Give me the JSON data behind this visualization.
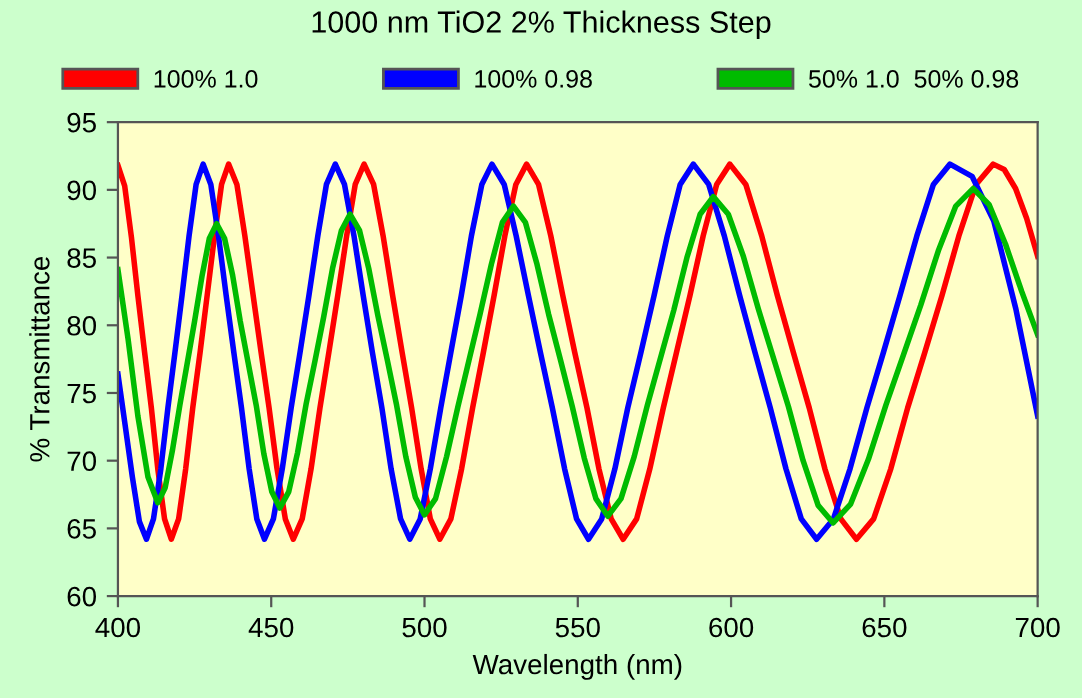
{
  "chart_data": {
    "type": "line",
    "title": "1000 nm TiO2 2% Thickness Step",
    "xlabel": "Wavelength (nm)",
    "ylabel": "% Transmittance",
    "xlim": [
      400,
      700
    ],
    "xticks": [
      400,
      450,
      500,
      550,
      600,
      650,
      700
    ],
    "ylim": [
      60,
      95
    ],
    "yticks": [
      60,
      65,
      70,
      75,
      80,
      85,
      90,
      95
    ],
    "grid": false,
    "legend": "top",
    "marker": "none",
    "line_style": "solid",
    "series": [
      {
        "name": "100% 1.0",
        "color": "#ff0000",
        "x": [
          400,
          402.2,
          404.4,
          406.5,
          408.7,
          410.9,
          413.0,
          415.2,
          417.4,
          419.8,
          422.1,
          424.4,
          426.8,
          429.1,
          431.5,
          433.8,
          436.1,
          438.8,
          441.4,
          444.1,
          446.7,
          449.3,
          451.9,
          454.6,
          457.2,
          460.1,
          463.0,
          465.9,
          468.8,
          471.7,
          474.6,
          477.4,
          480.3,
          483.4,
          486.5,
          489.6,
          492.7,
          495.8,
          498.9,
          501.9,
          505.0,
          508.6,
          512.1,
          515.7,
          519.2,
          522.7,
          526.2,
          529.8,
          533.3,
          537.2,
          541.2,
          545.1,
          549.0,
          553.0,
          556.9,
          560.9,
          564.8,
          569.2,
          573.5,
          577.9,
          582.2,
          586.6,
          590.9,
          595.3,
          599.6,
          604.8,
          610.0,
          615.1,
          620.3,
          625.5,
          630.6,
          635.8,
          640.9,
          646.5,
          652.1,
          657.6,
          663.2,
          668.8,
          674.3,
          679.9,
          685.5,
          689.1,
          692.8,
          696.4,
          700
        ],
        "values": [
          91.8,
          90.3,
          86.5,
          82.2,
          78,
          73.9,
          69.4,
          65.7,
          64.2,
          65.7,
          69.4,
          73.9,
          78,
          82.2,
          86.6,
          90.4,
          91.9,
          90.4,
          86.6,
          82.2,
          78,
          73.9,
          69.4,
          65.7,
          64.2,
          65.7,
          69.4,
          73.9,
          78,
          82.2,
          86.6,
          90.4,
          91.9,
          90.4,
          86.6,
          82.2,
          78,
          73.9,
          69.4,
          65.7,
          64.2,
          65.7,
          69.4,
          73.9,
          78,
          82.2,
          86.6,
          90.4,
          91.9,
          90.4,
          86.6,
          82.2,
          78,
          73.9,
          69.4,
          65.7,
          64.2,
          65.7,
          69.4,
          73.9,
          78,
          82.2,
          86.6,
          90.4,
          91.9,
          90.4,
          86.6,
          82.2,
          78,
          73.9,
          69.4,
          65.7,
          64.2,
          65.7,
          69.4,
          73.9,
          78,
          82.2,
          86.6,
          90.4,
          91.9,
          91.5,
          90.1,
          87.9,
          85.1
        ]
      },
      {
        "name": "100% 0.98",
        "color": "#0000ff",
        "x": [
          400,
          402.3,
          404.7,
          407.0,
          409.3,
          411.6,
          414.0,
          416.3,
          418.6,
          420.9,
          423.2,
          425.5,
          427.8,
          430.3,
          432.8,
          435.3,
          437.8,
          440.3,
          442.8,
          445.3,
          447.8,
          450.7,
          453.6,
          456.5,
          459.4,
          462.3,
          465.2,
          468.0,
          470.9,
          473.9,
          477.0,
          480.0,
          483.0,
          486.1,
          489.1,
          492.2,
          495.2,
          498.6,
          501.9,
          505.3,
          508.6,
          512.0,
          515.3,
          518.7,
          522.0,
          526.0,
          529.9,
          533.9,
          537.8,
          541.7,
          545.7,
          549.6,
          553.5,
          557.8,
          562.1,
          566.3,
          570.6,
          574.9,
          579.2,
          583.4,
          587.7,
          592.7,
          597.8,
          602.8,
          607.8,
          612.8,
          617.9,
          622.9,
          627.9,
          633.4,
          638.8,
          644.3,
          649.7,
          655.1,
          660.6,
          666.0,
          671.4,
          678.6,
          685.7,
          692.9,
          700
        ],
        "values": [
          76.4,
          72.7,
          68.8,
          65.5,
          64.2,
          65.7,
          69.4,
          73.9,
          78,
          82.2,
          86.6,
          90.4,
          91.9,
          90.4,
          86.6,
          82.2,
          78,
          73.9,
          69.4,
          65.7,
          64.2,
          65.7,
          69.4,
          73.9,
          78,
          82.2,
          86.6,
          90.4,
          91.9,
          90.4,
          86.6,
          82.2,
          78,
          73.9,
          69.4,
          65.7,
          64.2,
          65.7,
          69.4,
          73.9,
          78,
          82.2,
          86.6,
          90.4,
          91.9,
          90.4,
          86.6,
          82.2,
          78,
          73.9,
          69.4,
          65.7,
          64.2,
          65.7,
          69.4,
          73.9,
          78,
          82.2,
          86.6,
          90.4,
          91.9,
          90.4,
          86.6,
          82.2,
          78,
          73.9,
          69.4,
          65.7,
          64.2,
          65.7,
          69.4,
          73.9,
          78,
          82.2,
          86.6,
          90.4,
          91.9,
          91.0,
          87.7,
          81.2,
          73.3
        ]
      },
      {
        "name": "50% 1.0  50% 0.98",
        "color": "#00bb00",
        "x": [
          400,
          403.3,
          406.5,
          409.8,
          413.0,
          415.4,
          417.8,
          420.2,
          422.6,
          425.0,
          427.4,
          429.8,
          432.2,
          434.8,
          437.4,
          439.9,
          442.5,
          445.1,
          447.6,
          450.2,
          452.8,
          455.7,
          458.6,
          461.4,
          464.3,
          467.1,
          470.0,
          472.9,
          475.7,
          478.8,
          481.8,
          484.8,
          487.9,
          490.9,
          493.9,
          497.0,
          500.0,
          503.6,
          507.2,
          510.9,
          514.5,
          518.1,
          521.8,
          525.4,
          529.0,
          532.9,
          536.7,
          540.5,
          544.4,
          548.2,
          552.1,
          555.9,
          559.8,
          564.1,
          568.4,
          572.7,
          577.0,
          581.3,
          585.6,
          589.9,
          594.2,
          599.1,
          604.0,
          608.9,
          613.8,
          618.7,
          623.5,
          628.4,
          633.3,
          639.0,
          644.8,
          650.5,
          656.2,
          661.9,
          667.6,
          673.3,
          679.0,
          684.2,
          689.5,
          694.8,
          700.0
        ],
        "values": [
          84.1,
          79.0,
          73.3,
          68.8,
          66.9,
          68.0,
          70.8,
          74.1,
          77.2,
          80.3,
          83.6,
          86.4,
          87.5,
          86.4,
          83.7,
          80.3,
          77.2,
          74.1,
          70.5,
          67.7,
          66.5,
          67.7,
          70.6,
          74.2,
          77.4,
          80.6,
          84.2,
          87.0,
          88.2,
          87.0,
          84.2,
          80.7,
          77.4,
          74.1,
          70.3,
          67.3,
          66.0,
          67.2,
          70.3,
          74.0,
          77.4,
          80.8,
          84.5,
          87.6,
          88.8,
          87.6,
          84.5,
          80.8,
          77.4,
          74.0,
          70.2,
          67.2,
          65.9,
          67.2,
          70.3,
          74.1,
          77.6,
          81.1,
          85.0,
          88.2,
          89.5,
          88.2,
          85.1,
          81.2,
          77.6,
          74.0,
          70.0,
          66.7,
          65.4,
          66.8,
          70.1,
          74.1,
          77.8,
          81.5,
          85.5,
          88.8,
          90.1,
          88.9,
          86.0,
          82.5,
          79.3
        ]
      }
    ]
  }
}
